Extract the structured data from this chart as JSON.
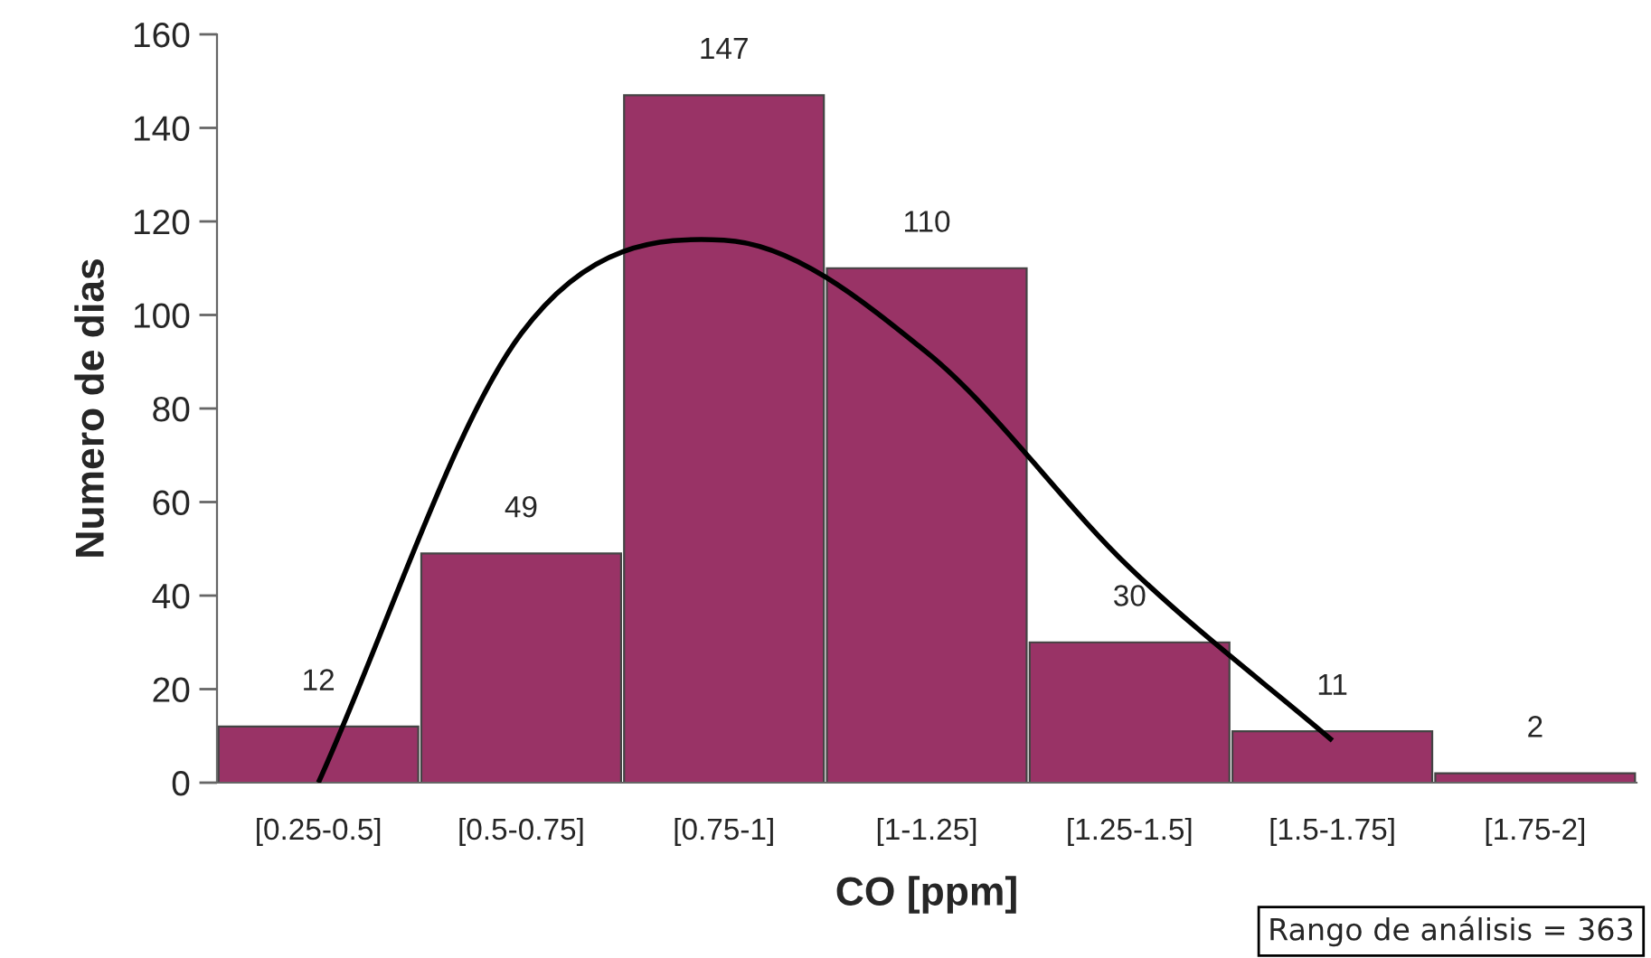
{
  "chart_data": {
    "type": "bar",
    "xlabel": "CO [ppm]",
    "ylabel": "Numero de dias",
    "categories": [
      "[0.25-0.5]",
      "[0.5-0.75]",
      "[0.75-1]",
      "[1-1.25]",
      "[1.25-1.5]",
      "[1.5-1.75]",
      "[1.75-2]"
    ],
    "values": [
      12,
      49,
      147,
      110,
      30,
      11,
      2
    ],
    "color": "#993366",
    "value_labels": [
      "12",
      "49",
      "147",
      "110",
      "30",
      "11",
      "2"
    ],
    "series": [
      {
        "type": "line",
        "color": "#000000",
        "values": [
          0,
          96,
          116,
          92,
          46,
          9,
          null
        ]
      }
    ],
    "ylim": [
      0,
      160
    ],
    "yticks": [
      0,
      20,
      40,
      60,
      80,
      100,
      120,
      140,
      160
    ],
    "grid": false,
    "legend": false,
    "annotations": [
      "Rango de análisis = 363"
    ]
  }
}
